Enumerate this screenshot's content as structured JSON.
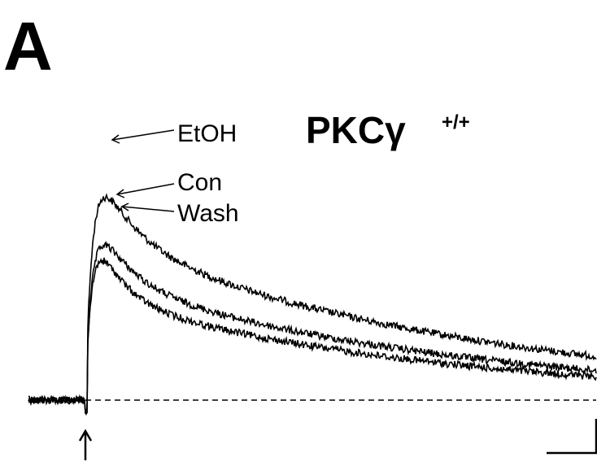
{
  "panel_label": "A",
  "title": {
    "text": "PKCγ",
    "superscript": "+/+"
  },
  "trace_labels": [
    "EtOH",
    "Con",
    "Wash"
  ]
}
